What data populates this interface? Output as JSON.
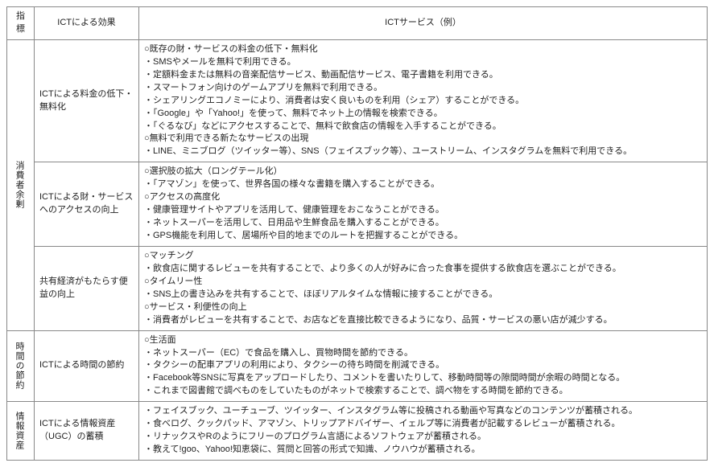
{
  "header": {
    "col1": "指標",
    "col2": "ICTによる効果",
    "col3": "ICTサービス（例）"
  },
  "groups": [
    {
      "indicator": "消費者余剰",
      "rows": [
        {
          "effect": "ICTによる料金の低下・無料化",
          "service": "○既存の財・サービスの料金の低下・無料化\n・SMSやメールを無料で利用できる。\n・定額料金または無料の音楽配信サービス、動画配信サービス、電子書籍を利用できる。\n・スマートフォン向けのゲームアプリを無料で利用できる。\n・シェアリングエコノミーにより、消費者は安く良いものを利用（シェア）することができる。\n・「Google」や「Yahoo!」を使って、無料でネット上の情報を検索できる。\n・「ぐるなび」などにアクセスすることで、無料で飲食店の情報を入手することができる。\n○無料で利用できる新たなサービスの出現\n・LINE、ミニブログ（ツイッター等）、SNS（フェイスブック等）、ユーストリーム、インスタグラムを無料で利用できる。"
        },
        {
          "effect": "ICTによる財・サービスへのアクセスの向上",
          "service": "○選択肢の拡大（ロングテール化）\n・「アマゾン」を使って、世界各国の様々な書籍を購入することができる。\n○アクセスの高度化\n・健康管理サイトやアプリを活用して、健康管理をおこなうことができる。\n・ネットスーパーを活用して、日用品や生鮮食品を購入することができる。\n・GPS機能を利用して、居場所や目的地までのルートを把握することができる。"
        },
        {
          "effect": "共有経済がもたらす便益の向上",
          "service": "○マッチング\n・飲食店に関するレビューを共有することで、より多くの人が好みに合った食事を提供する飲食店を選ぶことができる。\n○タイムリー性\n・SNS上の書き込みを共有することで、ほぼリアルタイムな情報に接することができる。\n○サービス・利便性の向上\n・消費者がレビューを共有することで、お店などを直接比較できるようになり、品質・サービスの悪い店が減少する。"
        }
      ]
    },
    {
      "indicator": "時間の節約",
      "rows": [
        {
          "effect": "ICTによる時間の節約",
          "service": "○生活面\n・ネットスーパー（EC）で食品を購入し、買物時間を節約できる。\n・タクシーの配車アプリの利用により、タクシーの待ち時間を削減できる。\n・Facebook等SNSに写真をアップロードしたり、コメントを書いたりして、移動時間等の隙間時間が余暇の時間となる。\n・これまで図書館で調べものをしていたものがネットで検索することで、調べ物をする時間を節約できる。"
        }
      ]
    },
    {
      "indicator": "情報資産",
      "rows": [
        {
          "effect": "ICTによる情報資産（UGC）の蓄積",
          "service": "・フェイスブック、ユーチューブ、ツイッター、インスタグラム等に投稿される動画や写真などのコンテンツが蓄積される。\n・食べログ、クックパッド、アマゾン、トリップアドバイザー、イェルプ等に消費者が記載するレビューが蓄積される。\n・リナックスやRのようにフリーのプログラム言語によるソフトウェアが蓄積される。\n・教えて!goo、Yahoo!知恵袋に、質問と回答の形式で知識、ノウハウが蓄積される。"
        }
      ]
    }
  ]
}
